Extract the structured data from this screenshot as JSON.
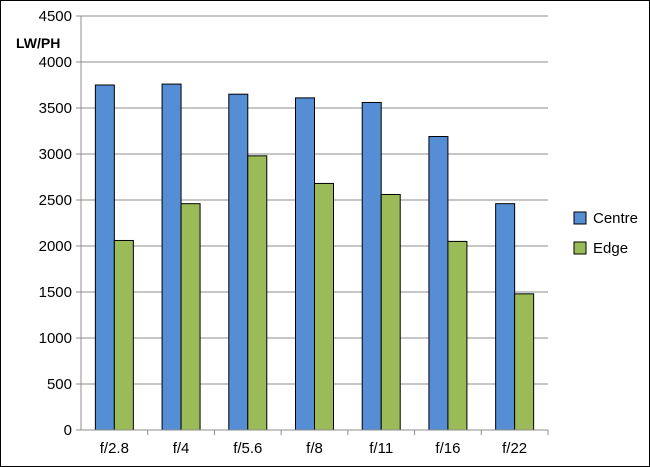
{
  "chart_data": {
    "type": "bar",
    "title": "",
    "xlabel": "",
    "ylabel": "LW/PH",
    "ylim": [
      0,
      4500
    ],
    "yticks": [
      0,
      500,
      1000,
      1500,
      2000,
      2500,
      3000,
      3500,
      4000,
      4500
    ],
    "grid": true,
    "legend_position": "right",
    "categories": [
      "f/2.8",
      "f/4",
      "f/5.6",
      "f/8",
      "f/11",
      "f/16",
      "f/22"
    ],
    "series": [
      {
        "name": "Centre",
        "color": "#558ED5",
        "values": [
          3750,
          3760,
          3650,
          3610,
          3560,
          3190,
          2460
        ]
      },
      {
        "name": "Edge",
        "color": "#9BBB59",
        "values": [
          2060,
          2460,
          2980,
          2680,
          2560,
          2050,
          1480
        ]
      }
    ]
  }
}
